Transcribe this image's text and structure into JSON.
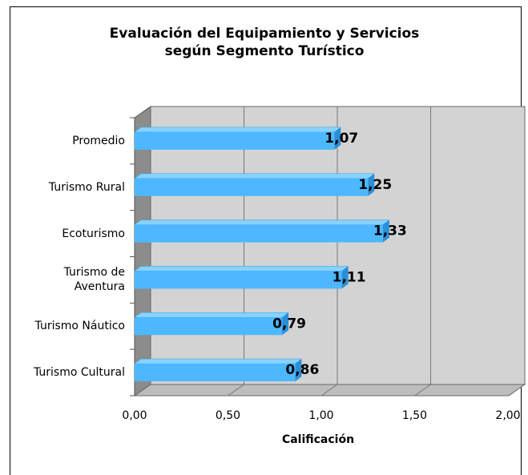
{
  "chart_data": {
    "type": "bar3d-horizontal",
    "title": [
      "Evaluación del Equipamiento y Servicios",
      "según Segmento Turístico"
    ],
    "categories": [
      "Promedio",
      "Turismo Rural",
      "Ecoturismo",
      "Turismo de Aventura",
      "Turismo Náutico",
      "Turismo Cultural"
    ],
    "values": [
      1.07,
      1.25,
      1.33,
      1.11,
      0.79,
      0.86
    ],
    "value_labels": [
      "1,07",
      "1,25",
      "1,33",
      "1,11",
      "0,79",
      "0,86"
    ],
    "color": "#4db8ff",
    "xlim": [
      0,
      2
    ],
    "xticks": [
      {
        "value": 0,
        "label": "0,00"
      },
      {
        "value": 0.5,
        "label": "0,50"
      },
      {
        "value": 1,
        "label": "1,00"
      },
      {
        "value": 1.5,
        "label": "1,50"
      },
      {
        "value": 2,
        "label": "2,00"
      }
    ],
    "xlabel": "Calificación",
    "grid": true
  }
}
